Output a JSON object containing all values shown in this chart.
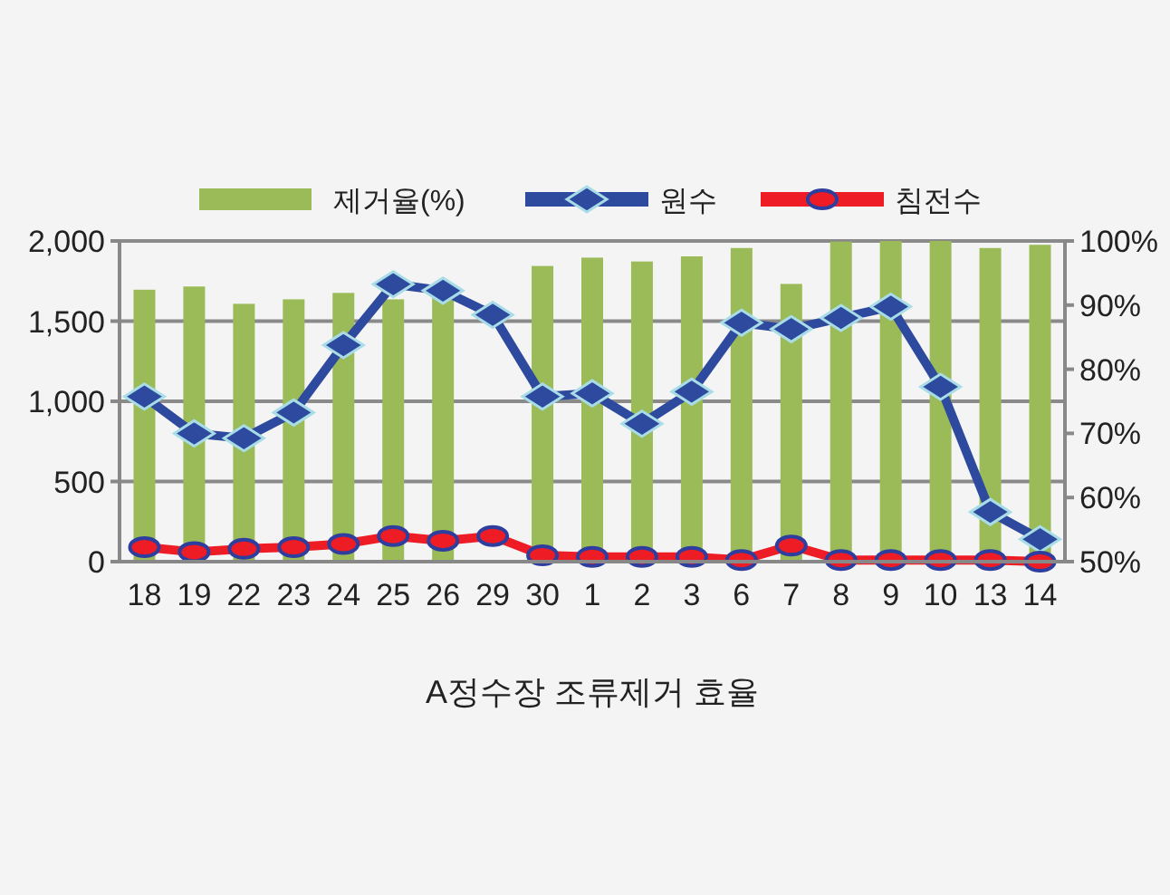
{
  "chart_data": {
    "type": "bar",
    "title": "A정수장 조류제거 효율",
    "categories": [
      "18",
      "19",
      "22",
      "23",
      "24",
      "25",
      "26",
      "29",
      "30",
      "1",
      "2",
      "3",
      "6",
      "7",
      "8",
      "9",
      "10",
      "13",
      "14"
    ],
    "series": [
      {
        "name": "제거율(%)",
        "axis": "y2",
        "color": "#9bbb59",
        "values": [
          92.4,
          92.9,
          90.2,
          90.9,
          91.9,
          90.9,
          91.2,
          null,
          96.1,
          97.4,
          96.8,
          97.6,
          98.9,
          93.3,
          99.9,
          100,
          100,
          98.9,
          99.4
        ]
      },
      {
        "name": "원수",
        "type": "line",
        "marker": "diamond",
        "color": "#2e4a9e",
        "values": [
          1030,
          800,
          770,
          930,
          1350,
          1730,
          1690,
          1540,
          1030,
          1050,
          860,
          1060,
          1490,
          1450,
          1520,
          1590,
          1090,
          310,
          140
        ]
      },
      {
        "name": "침전수",
        "type": "line",
        "marker": "circle",
        "color": "#ee1c25",
        "values": [
          90,
          60,
          80,
          90,
          110,
          160,
          130,
          160,
          40,
          30,
          30,
          30,
          10,
          100,
          10,
          10,
          10,
          10,
          0
        ]
      }
    ],
    "ylim": [
      0,
      2000
    ],
    "yticks": [
      0,
      {
        "value": 500,
        "label": "500"
      },
      {
        "value": 1000,
        "label": "1,000"
      },
      {
        "value": 1500,
        "label": "1,500"
      },
      {
        "value": 2000,
        "label": "2,000"
      }
    ],
    "y2lim": [
      50,
      100
    ],
    "y2ticks": [
      {
        "value": 50,
        "label": "50%"
      },
      {
        "value": 60,
        "label": "60%"
      },
      {
        "value": 70,
        "label": "70%"
      },
      {
        "value": 80,
        "label": "80%"
      },
      {
        "value": 90,
        "label": "90%"
      },
      {
        "value": 100,
        "label": "100%"
      }
    ],
    "grid": "y",
    "legend": "top"
  }
}
